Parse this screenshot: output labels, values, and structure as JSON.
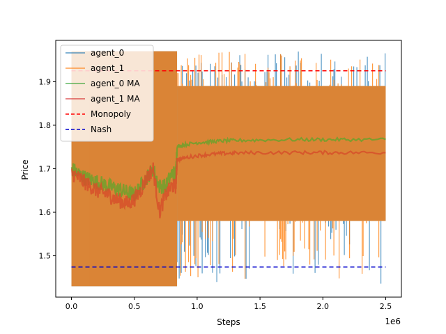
{
  "chart_data": {
    "type": "line",
    "title": "",
    "xlabel": "Steps",
    "ylabel": "Price",
    "x_offset_label": "1e6",
    "xlim": [
      -0.125,
      2.625
    ],
    "ylim": [
      1.405,
      1.995
    ],
    "x_ticks": [
      0.0,
      0.5,
      1.0,
      1.5,
      2.0,
      2.5
    ],
    "x_tick_labels": [
      "0.0",
      "0.5",
      "1.0",
      "1.5",
      "2.0",
      "2.5"
    ],
    "y_ticks": [
      1.5,
      1.6,
      1.7,
      1.8,
      1.9
    ],
    "y_tick_labels": [
      "1.5",
      "1.6",
      "1.7",
      "1.8",
      "1.9"
    ],
    "grid": false,
    "legend_position": "upper-left",
    "legend": [
      {
        "label": "agent_0",
        "color": "#1f77b4",
        "style": "solid"
      },
      {
        "label": "agent_1",
        "color": "#ff7f0e",
        "style": "solid"
      },
      {
        "label": "agent_0 MA",
        "color": "#2ca02c",
        "style": "solid"
      },
      {
        "label": "agent_1 MA",
        "color": "#d62728",
        "style": "solid"
      },
      {
        "label": "Monopoly",
        "color": "#ff0000",
        "style": "dashed"
      },
      {
        "label": "Nash",
        "color": "#0000cc",
        "style": "dashed"
      }
    ],
    "series": [
      {
        "name": "agent_0",
        "range_min": 1.43,
        "range_max": 1.97,
        "band_early": [
          1.43,
          1.97
        ],
        "band_late": [
          1.58,
          1.89
        ],
        "x": [
          0.0,
          2.5
        ]
      },
      {
        "name": "agent_1",
        "range_min": 1.43,
        "range_max": 1.97,
        "band_early": [
          1.43,
          1.97
        ],
        "band_late": [
          1.58,
          1.89
        ],
        "x": [
          0.0,
          2.5
        ]
      },
      {
        "name": "agent_0 MA",
        "x": [
          0.0,
          0.05,
          0.1,
          0.15,
          0.2,
          0.25,
          0.3,
          0.35,
          0.4,
          0.45,
          0.5,
          0.55,
          0.6,
          0.65,
          0.7,
          0.75,
          0.8,
          0.83,
          0.84,
          0.9,
          1.0,
          1.1,
          1.2,
          1.3,
          1.5,
          1.8,
          2.0,
          2.2,
          2.5
        ],
        "values": [
          1.7,
          1.69,
          1.68,
          1.675,
          1.67,
          1.665,
          1.66,
          1.655,
          1.65,
          1.645,
          1.64,
          1.66,
          1.68,
          1.7,
          1.66,
          1.66,
          1.69,
          1.69,
          1.75,
          1.755,
          1.76,
          1.762,
          1.764,
          1.765,
          1.766,
          1.767,
          1.767,
          1.767,
          1.767
        ]
      },
      {
        "name": "agent_1 MA",
        "x": [
          0.0,
          0.05,
          0.1,
          0.15,
          0.2,
          0.25,
          0.3,
          0.35,
          0.4,
          0.45,
          0.5,
          0.55,
          0.6,
          0.65,
          0.7,
          0.75,
          0.8,
          0.83,
          0.84,
          0.9,
          1.0,
          1.1,
          1.2,
          1.3,
          1.5,
          1.8,
          2.0,
          2.2,
          2.5
        ],
        "values": [
          1.69,
          1.68,
          1.67,
          1.66,
          1.65,
          1.645,
          1.64,
          1.63,
          1.625,
          1.62,
          1.63,
          1.65,
          1.68,
          1.7,
          1.6,
          1.64,
          1.66,
          1.66,
          1.72,
          1.725,
          1.73,
          1.733,
          1.735,
          1.736,
          1.737,
          1.737,
          1.737,
          1.737,
          1.737
        ]
      },
      {
        "name": "Monopoly",
        "x": [
          0.0,
          2.5
        ],
        "values": [
          1.925,
          1.925
        ]
      },
      {
        "name": "Nash",
        "x": [
          0.0,
          2.5
        ],
        "values": [
          1.474,
          1.474
        ]
      }
    ]
  }
}
